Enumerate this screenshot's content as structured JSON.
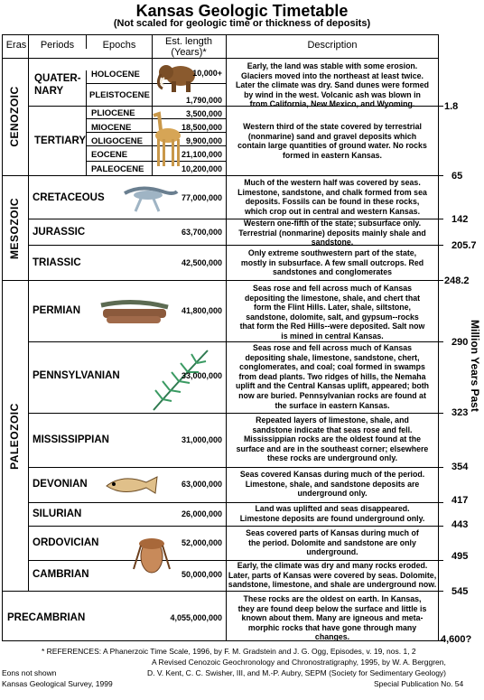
{
  "title": "Kansas Geologic Timetable",
  "subtitle": "(Not scaled for geologic time or thickness of deposits)",
  "headers": {
    "eras": "Eras",
    "periods": "Periods",
    "epochs": "Epochs",
    "length_line1": "Est. length",
    "length_line2": "(Years)*",
    "description": "Description"
  },
  "eras": [
    "CENOZOIC",
    "MESOZOIC",
    "PALEOZOIC"
  ],
  "periods": {
    "quaternary_1": "QUATER-",
    "quaternary_2": "NARY",
    "tertiary": "TERTIARY",
    "cretaceous": "CRETACEOUS",
    "jurassic": "JURASSIC",
    "triassic": "TRIASSIC",
    "permian": "PERMIAN",
    "pennsylvanian": "PENNSYLVANIAN",
    "mississippian": "MISSISSIPPIAN",
    "devonian": "DEVONIAN",
    "silurian": "SILURIAN",
    "ordovician": "ORDOVICIAN",
    "cambrian": "CAMBRIAN",
    "precambrian": "PRECAMBRIAN"
  },
  "epochs": {
    "holocene": "HOLOCENE",
    "pleistocene": "PLEISTOCENE",
    "pliocene": "PLIOCENE",
    "miocene": "MIOCENE",
    "oligocene": "OLIGOCENE",
    "eocene": "EOCENE",
    "paleocene": "PALEOCENE"
  },
  "lengths": {
    "holocene": "10,000+",
    "pleistocene": "1,790,000",
    "pliocene": "3,500,000",
    "miocene": "18,500,000",
    "oligocene": "9,900,000",
    "eocene": "21,100,000",
    "paleocene": "10,200,000",
    "cretaceous": "77,000,000",
    "jurassic": "63,700,000",
    "triassic": "42,500,000",
    "permian": "41,800,000",
    "pennsylvanian": "33,000,000",
    "mississippian": "31,000,000",
    "devonian": "63,000,000",
    "silurian": "26,000,000",
    "ordovician": "52,000,000",
    "cambrian": "50,000,000",
    "precambrian": "4,055,000,000"
  },
  "descriptions": {
    "quaternary": [
      "Early, the land was stable with some erosion.",
      "Glaciers moved into the northeast at least twice.",
      "Later the climate was dry. Sand dunes were formed",
      "by wind in the west. Volcanic ash was blown in",
      "from California, New Mexico, and Wyoming."
    ],
    "tertiary": [
      "Western third of the state covered by terrestrial",
      "(nonmarine) sand and gravel deposits which",
      "contain large quantities of ground water. No rocks",
      "formed in eastern Kansas."
    ],
    "cretaceous": [
      "Much of the western half was covered by seas.",
      "Limestone, sandstone, and chalk formed from sea",
      "deposits. Fossils can be found in these rocks,",
      "which crop out in central and western Kansas."
    ],
    "jurassic": [
      "Western one-fifth of the state; subsurface only.",
      "Terrestrial (nonmarine) deposits mainly shale and",
      "sandstone."
    ],
    "triassic": [
      "Only extreme southwestern part of the state,",
      "mostly in subsurface. A few small outcrops. Red",
      "sandstones and conglomerates"
    ],
    "permian": [
      "Seas rose and fell across much of Kansas",
      "depositing the limestone, shale, and chert that",
      "form the Flint Hills. Later, shale, siltstone,",
      "sandstone, dolomite, salt, and gypsum--rocks",
      "that form the Red Hills--were deposited. Salt now",
      "is mined in central Kansas."
    ],
    "pennsylvanian": [
      "Seas rose and fell across much of Kansas",
      "depositing shale, limestone, sandstone, chert,",
      "conglomerates, and coal; coal formed in swamps",
      "from dead plants. Two ridges of hills, the Nemaha",
      "uplift and the Central Kansas uplift, appeared; both",
      "now are buried. Pennsylvanian rocks are found at",
      "the surface in eastern Kansas."
    ],
    "mississippian": [
      "Repeated layers of limestone, shale, and",
      "sandstone indicate that seas rose and fell.",
      "Mississippian rocks are the oldest found at the",
      "surface and are in the southeast corner; elsewhere",
      "these rocks are underground only."
    ],
    "devonian": [
      "Seas covered Kansas during much of the period.",
      "Limestone, shale, and sandstone deposits are",
      "underground only."
    ],
    "silurian": [
      "Land was uplifted and seas disappeared.",
      "Limestone deposits are found underground only."
    ],
    "ordovician": [
      "Seas covered parts of Kansas during much of",
      "the period. Dolomite and sandstone are only",
      "underground."
    ],
    "cambrian": [
      "Early, the climate was dry and many rocks eroded.",
      "Later, parts of Kansas were covered by seas. Dolomite,",
      "sandstone, limestone, and shale are underground now."
    ],
    "precambrian": [
      "These rocks are the oldest on earth. In Kansas,",
      "they are found deep below the surface and little is",
      "known about them. Many are igneous and meta-",
      "morphic rocks that have gone through many",
      "changes."
    ]
  },
  "ages": [
    "1.8",
    "65",
    "142",
    "205.7",
    "248.2",
    "290",
    "323",
    "354",
    "417",
    "443",
    "495",
    "545",
    "4,600?"
  ],
  "axis_label": "Million Years Past",
  "footer": {
    "ref_1": "* REFERENCES: A Phanerzoic Time Scale, 1996, by F. M. Gradstein and J. G. Ogg, Episodes, v. 19, nos. 1, 2",
    "ref_2": "A Revised Cenozoic Geochronology and Chronostratigraphy, 1995, by W. A. Berggren,",
    "ref_3": "D. V. Kent, C. C. Swisher, III, and M.-P. Aubry, SEPM (Society for Sedimentary Geology)",
    "ref_4": "Special Publication No. 54",
    "eons": "Eons not shown",
    "survey": "Kansas Geological Survey, 1999"
  }
}
